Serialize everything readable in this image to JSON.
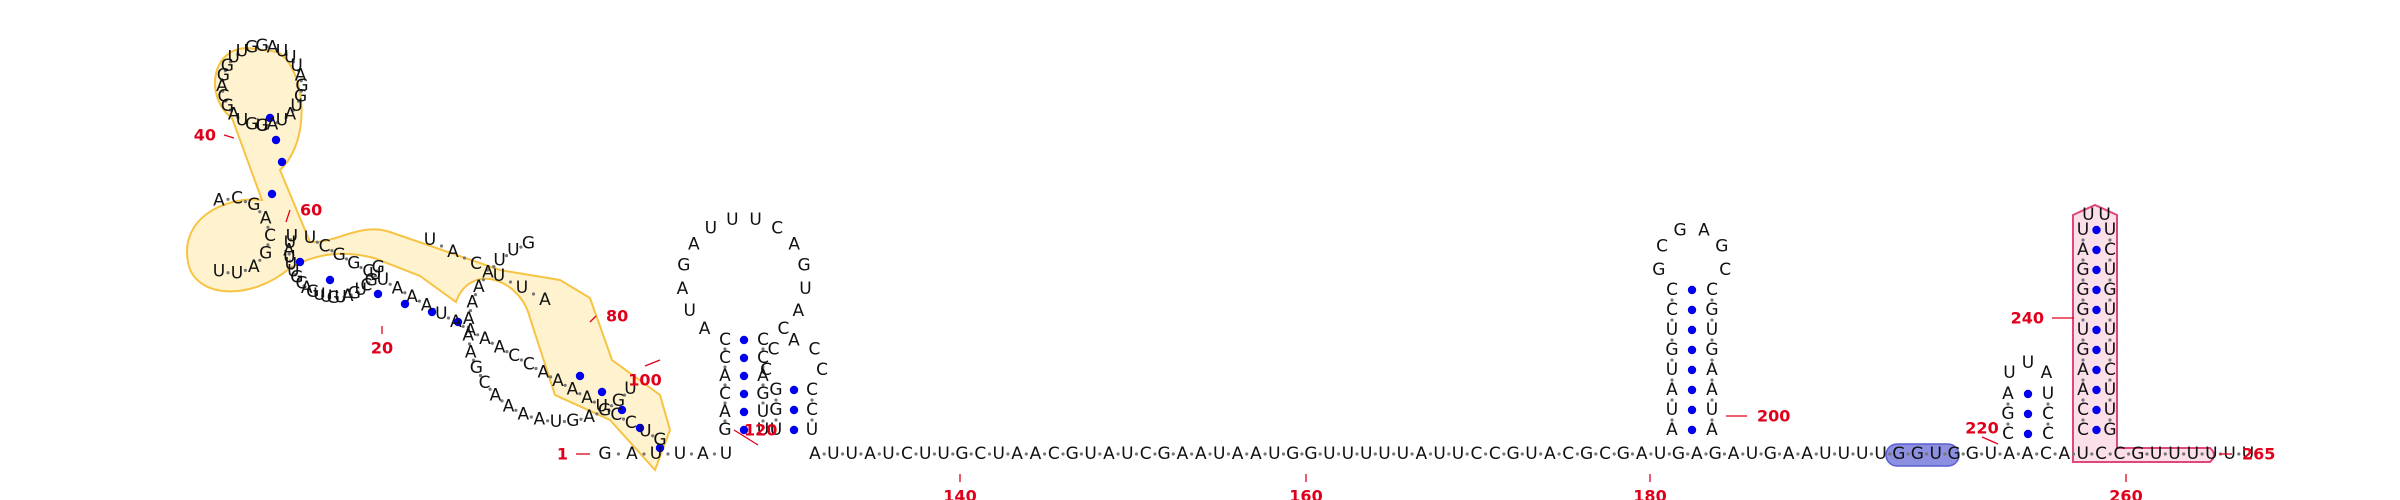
{
  "diagram": {
    "kind": "RNA secondary structure",
    "colors": {
      "nucleotide": "#111111",
      "pair_dot": "#0000ee",
      "backbone_dot": "#777777",
      "position_number": "#e0001b",
      "region_yellow_fill": "#fff3cf",
      "region_yellow_stroke": "#f6c343",
      "region_pink_fill": "#fbe0ea",
      "region_pink_stroke": "#e0457b",
      "region_blue_fill": "#8d8fe0",
      "region_blue_stroke": "#5c5fcf"
    },
    "position_numbers": [
      "1",
      "20",
      "40",
      "60",
      "80",
      "100",
      "120",
      "140",
      "160",
      "180",
      "200",
      "220",
      "240",
      "260",
      "265"
    ],
    "tail_sequence": "AUUAUCUUGCUAACGUAUCGAAUAAUGGUUUUUAUUCCGUACGCGAUGAGAUGAAUUUUGGUGGUAACAUCCGUUUUUU",
    "domain_a": {
      "stem1_left": "GAUUAU",
      "loop1_upper": "UGGAGUAAAACGAAAAAAUUG",
      "stem3_left": "AUUCAU",
      "region_upper": "GUGCUGAUGUUGACGUUUAUU",
      "hairpin_letters": "GGUAGCAGGUUGGAUUUAGGUAUAU",
      "bulge": "ACGACGAUU",
      "right_branch": "UCGGCUAAAUAAAACCAAAAUCCUG"
    },
    "hairpin_b": {
      "stem_5p": "GACACC",
      "loop": "AUAGAUUUCAGUAC",
      "stem_3p": "CCAGUU"
    },
    "hairpin_c": {
      "stem_5p": "UGG",
      "loop": "CCACC",
      "stem_3p": "CCU"
    },
    "hairpin_d": {
      "stem_5p": "AUAUGUCC",
      "loop": "GCGAGC",
      "stem_3p": "CGUGAAUA"
    },
    "hairpin_e": {
      "stem_5p": "CGA",
      "loop": "UUA",
      "stem_3p": "UCC"
    },
    "hairpin_f": {
      "stem_5p": "CCAAGUGGGAU",
      "loop": "UU",
      "stem_3p": "UCUGUUUCUUG"
    }
  }
}
